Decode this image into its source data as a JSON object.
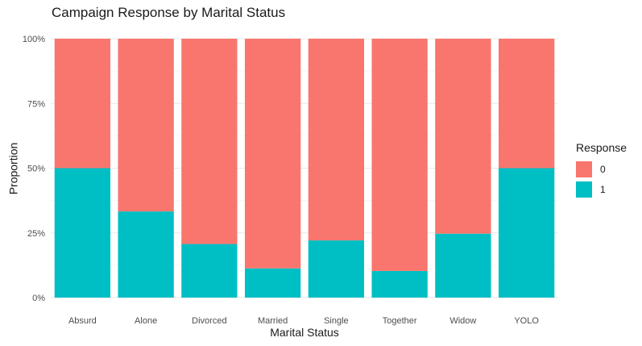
{
  "chart_data": {
    "type": "bar",
    "stacked": true,
    "title": "Campaign Response by Marital Status",
    "xlabel": "Marital Status",
    "ylabel": "Proportion",
    "ylim": [
      0,
      1
    ],
    "y_ticks": [
      "0%",
      "25%",
      "50%",
      "75%",
      "100%"
    ],
    "grid": true,
    "legend_title": "Response",
    "legend_placement": "right",
    "categories": [
      "Absurd",
      "Alone",
      "Divorced",
      "Married",
      "Single",
      "Together",
      "Widow",
      "YOLO"
    ],
    "series": [
      {
        "name": "0",
        "color": "#F8766D",
        "values": [
          0.5,
          0.667,
          0.793,
          0.887,
          0.779,
          0.897,
          0.753,
          0.5
        ]
      },
      {
        "name": "1",
        "color": "#00BFC4",
        "values": [
          0.5,
          0.333,
          0.207,
          0.113,
          0.221,
          0.103,
          0.247,
          0.5
        ]
      }
    ]
  }
}
